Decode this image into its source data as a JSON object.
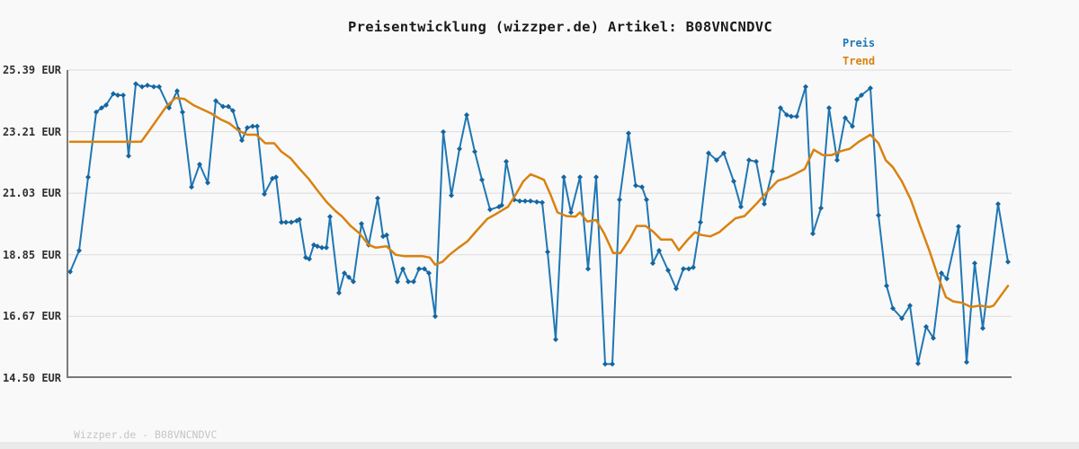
{
  "title": "Preisentwicklung (wizzper.de) Artikel: B08VNCNDVC",
  "legend": {
    "preis_label": "Preis",
    "trend_label": "Trend"
  },
  "footer": "Wizzper.de - B08VNCNDVC",
  "y_axis": {
    "unit": "EUR",
    "tick_labels": [
      "25.39 EUR",
      "23.21 EUR",
      "21.03 EUR",
      "18.85 EUR",
      "16.67 EUR",
      "14.50 EUR"
    ]
  },
  "colors": {
    "preis": "#1f77b4",
    "preis_marker": "#1565a0",
    "trend": "#d9820f",
    "grid": "#dcdcdc",
    "axis": "#7a7a7a",
    "title": "#1a1a1a",
    "tick_label": "#303030",
    "footer": "#c5c5c5",
    "page_bg": "#f9f9f9",
    "bottom_strip": "#eaeaea"
  },
  "chart_data": {
    "type": "line",
    "title": "Preisentwicklung (wizzper.de) Artikel: B08VNCNDVC",
    "xlabel": "",
    "ylabel": "EUR",
    "ylim": [
      14.5,
      25.39
    ],
    "y_ticks": [
      25.39,
      23.21,
      21.03,
      18.85,
      16.67,
      14.5
    ],
    "grid": "horizontal",
    "legend_position": "top-right",
    "x_note": "no x-axis labels visible; x values are pixel positions across the plot (75-1125)",
    "series": [
      {
        "name": "Preis",
        "color": "#1f77b4",
        "marker": "diamond",
        "points": [
          [
            78,
            18.25
          ],
          [
            88,
            19.0
          ],
          [
            98,
            21.6
          ],
          [
            107,
            23.9
          ],
          [
            113,
            24.05
          ],
          [
            118,
            24.15
          ],
          [
            126,
            24.55
          ],
          [
            131,
            24.5
          ],
          [
            137,
            24.5
          ],
          [
            143,
            22.35
          ],
          [
            151,
            24.9
          ],
          [
            158,
            24.8
          ],
          [
            164,
            24.85
          ],
          [
            171,
            24.8
          ],
          [
            177,
            24.8
          ],
          [
            188,
            24.05
          ],
          [
            197,
            24.65
          ],
          [
            203,
            23.9
          ],
          [
            213,
            21.25
          ],
          [
            222,
            22.05
          ],
          [
            231,
            21.4
          ],
          [
            240,
            24.3
          ],
          [
            248,
            24.1
          ],
          [
            254,
            24.1
          ],
          [
            259,
            23.95
          ],
          [
            265,
            23.3
          ],
          [
            269,
            22.9
          ],
          [
            275,
            23.35
          ],
          [
            281,
            23.4
          ],
          [
            286,
            23.4
          ],
          [
            294,
            21.0
          ],
          [
            303,
            21.55
          ],
          [
            307,
            21.6
          ],
          [
            313,
            20.0
          ],
          [
            318,
            20.0
          ],
          [
            324,
            20.0
          ],
          [
            330,
            20.05
          ],
          [
            333,
            20.1
          ],
          [
            340,
            18.75
          ],
          [
            344,
            18.7
          ],
          [
            349,
            19.2
          ],
          [
            353,
            19.15
          ],
          [
            358,
            19.1
          ],
          [
            363,
            19.1
          ],
          [
            367,
            20.2
          ],
          [
            377,
            17.5
          ],
          [
            383,
            18.2
          ],
          [
            388,
            18.05
          ],
          [
            393,
            17.9
          ],
          [
            402,
            19.95
          ],
          [
            410,
            19.2
          ],
          [
            420,
            20.85
          ],
          [
            426,
            19.5
          ],
          [
            430,
            19.55
          ],
          [
            442,
            17.9
          ],
          [
            448,
            18.35
          ],
          [
            454,
            17.9
          ],
          [
            460,
            17.9
          ],
          [
            466,
            18.35
          ],
          [
            472,
            18.35
          ],
          [
            477,
            18.2
          ],
          [
            484,
            16.67
          ],
          [
            493,
            23.2
          ],
          [
            502,
            20.95
          ],
          [
            511,
            22.6
          ],
          [
            519,
            23.8
          ],
          [
            528,
            22.5
          ],
          [
            536,
            21.5
          ],
          [
            545,
            20.45
          ],
          [
            555,
            20.55
          ],
          [
            558,
            20.6
          ],
          [
            563,
            22.15
          ],
          [
            572,
            20.8
          ],
          [
            578,
            20.75
          ],
          [
            584,
            20.75
          ],
          [
            590,
            20.75
          ],
          [
            597,
            20.72
          ],
          [
            603,
            20.7
          ],
          [
            609,
            18.95
          ],
          [
            618,
            15.85
          ],
          [
            627,
            21.6
          ],
          [
            635,
            20.35
          ],
          [
            645,
            21.6
          ],
          [
            654,
            18.35
          ],
          [
            663,
            21.6
          ],
          [
            673,
            14.98
          ],
          [
            681,
            14.98
          ],
          [
            689,
            20.8
          ],
          [
            699,
            23.15
          ],
          [
            707,
            21.3
          ],
          [
            714,
            21.25
          ],
          [
            719,
            20.8
          ],
          [
            726,
            18.55
          ],
          [
            733,
            19.0
          ],
          [
            743,
            18.3
          ],
          [
            752,
            17.65
          ],
          [
            760,
            18.35
          ],
          [
            766,
            18.35
          ],
          [
            771,
            18.4
          ],
          [
            779,
            20.0
          ],
          [
            788,
            22.45
          ],
          [
            797,
            22.2
          ],
          [
            805,
            22.45
          ],
          [
            816,
            21.45
          ],
          [
            824,
            20.55
          ],
          [
            833,
            22.2
          ],
          [
            841,
            22.15
          ],
          [
            850,
            20.65
          ],
          [
            859,
            21.8
          ],
          [
            868,
            24.05
          ],
          [
            875,
            23.8
          ],
          [
            880,
            23.75
          ],
          [
            886,
            23.75
          ],
          [
            896,
            24.8
          ],
          [
            904,
            19.6
          ],
          [
            913,
            20.5
          ],
          [
            922,
            24.05
          ],
          [
            931,
            22.2
          ],
          [
            940,
            23.7
          ],
          [
            948,
            23.4
          ],
          [
            953,
            24.35
          ],
          [
            958,
            24.5
          ],
          [
            968,
            24.75
          ],
          [
            977,
            20.25
          ],
          [
            986,
            17.75
          ],
          [
            993,
            16.95
          ],
          [
            1003,
            16.6
          ],
          [
            1012,
            17.05
          ],
          [
            1021,
            15.0
          ],
          [
            1030,
            16.3
          ],
          [
            1038,
            15.9
          ],
          [
            1047,
            18.2
          ],
          [
            1053,
            18.0
          ],
          [
            1066,
            19.85
          ],
          [
            1075,
            15.05
          ],
          [
            1084,
            18.55
          ],
          [
            1093,
            16.25
          ],
          [
            1110,
            20.65
          ],
          [
            1121,
            18.6
          ]
        ]
      },
      {
        "name": "Trend",
        "color": "#d9820f",
        "marker": "none",
        "points": [
          [
            78,
            22.85
          ],
          [
            100,
            22.85
          ],
          [
            120,
            22.85
          ],
          [
            140,
            22.85
          ],
          [
            157,
            22.85
          ],
          [
            165,
            23.2
          ],
          [
            175,
            23.65
          ],
          [
            185,
            24.1
          ],
          [
            195,
            24.4
          ],
          [
            205,
            24.37
          ],
          [
            215,
            24.15
          ],
          [
            225,
            24.0
          ],
          [
            235,
            23.85
          ],
          [
            245,
            23.65
          ],
          [
            255,
            23.5
          ],
          [
            265,
            23.25
          ],
          [
            275,
            23.1
          ],
          [
            285,
            23.1
          ],
          [
            295,
            22.8
          ],
          [
            305,
            22.8
          ],
          [
            313,
            22.5
          ],
          [
            323,
            22.27
          ],
          [
            333,
            21.9
          ],
          [
            343,
            21.55
          ],
          [
            353,
            21.13
          ],
          [
            363,
            20.73
          ],
          [
            373,
            20.4
          ],
          [
            380,
            20.22
          ],
          [
            390,
            19.87
          ],
          [
            400,
            19.6
          ],
          [
            410,
            19.2
          ],
          [
            418,
            19.1
          ],
          [
            430,
            19.15
          ],
          [
            440,
            18.85
          ],
          [
            450,
            18.8
          ],
          [
            460,
            18.8
          ],
          [
            470,
            18.8
          ],
          [
            478,
            18.75
          ],
          [
            484,
            18.5
          ],
          [
            492,
            18.6
          ],
          [
            500,
            18.85
          ],
          [
            510,
            19.1
          ],
          [
            520,
            19.33
          ],
          [
            530,
            19.7
          ],
          [
            542,
            20.12
          ],
          [
            552,
            20.3
          ],
          [
            565,
            20.55
          ],
          [
            573,
            20.95
          ],
          [
            582,
            21.45
          ],
          [
            590,
            21.7
          ],
          [
            598,
            21.6
          ],
          [
            605,
            21.5
          ],
          [
            612,
            21.0
          ],
          [
            620,
            20.35
          ],
          [
            630,
            20.22
          ],
          [
            640,
            20.2
          ],
          [
            645,
            20.35
          ],
          [
            653,
            20.03
          ],
          [
            663,
            20.08
          ],
          [
            672,
            19.6
          ],
          [
            682,
            18.91
          ],
          [
            690,
            18.91
          ],
          [
            700,
            19.39
          ],
          [
            708,
            19.87
          ],
          [
            718,
            19.87
          ],
          [
            727,
            19.65
          ],
          [
            735,
            19.39
          ],
          [
            747,
            19.39
          ],
          [
            755,
            19.01
          ],
          [
            765,
            19.39
          ],
          [
            773,
            19.65
          ],
          [
            780,
            19.55
          ],
          [
            790,
            19.5
          ],
          [
            800,
            19.65
          ],
          [
            808,
            19.87
          ],
          [
            818,
            20.14
          ],
          [
            828,
            20.22
          ],
          [
            842,
            20.68
          ],
          [
            855,
            21.14
          ],
          [
            865,
            21.47
          ],
          [
            875,
            21.57
          ],
          [
            885,
            21.72
          ],
          [
            895,
            21.89
          ],
          [
            905,
            22.57
          ],
          [
            915,
            22.38
          ],
          [
            925,
            22.38
          ],
          [
            935,
            22.52
          ],
          [
            945,
            22.6
          ],
          [
            955,
            22.85
          ],
          [
            968,
            23.1
          ],
          [
            977,
            22.8
          ],
          [
            985,
            22.2
          ],
          [
            993,
            21.95
          ],
          [
            1003,
            21.45
          ],
          [
            1013,
            20.8
          ],
          [
            1023,
            19.9
          ],
          [
            1033,
            19.05
          ],
          [
            1043,
            18.1
          ],
          [
            1052,
            17.35
          ],
          [
            1060,
            17.2
          ],
          [
            1070,
            17.15
          ],
          [
            1080,
            17.0
          ],
          [
            1090,
            17.05
          ],
          [
            1100,
            17.0
          ],
          [
            1105,
            17.05
          ],
          [
            1113,
            17.4
          ],
          [
            1121,
            17.75
          ]
        ]
      }
    ]
  }
}
